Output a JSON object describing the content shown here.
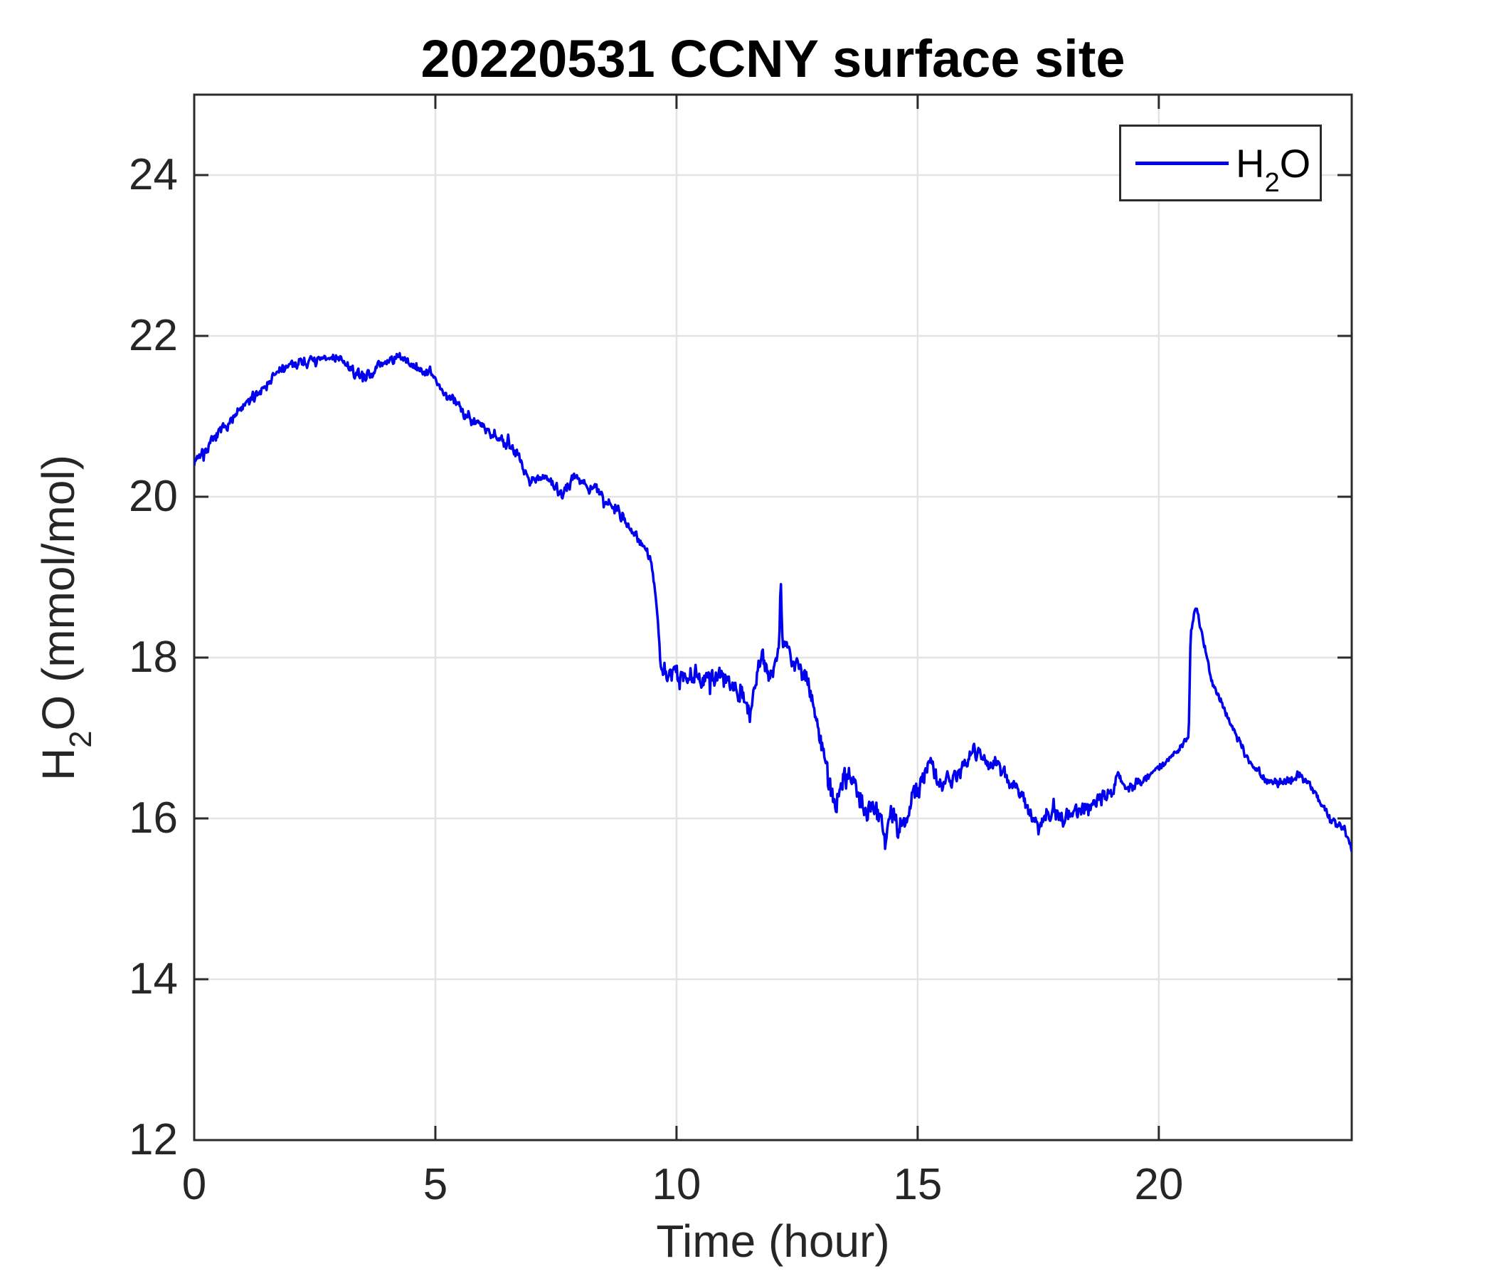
{
  "figure": {
    "title": "20220531 CCNY surface site",
    "xlabel": "Time (hour)",
    "ylabel": {
      "main": "H",
      "sub": "2",
      "tail": "O (mmol/mol)"
    }
  },
  "legend": {
    "entries": [
      {
        "main": "H",
        "sub": "2",
        "tail": "O",
        "color": "#0000EE"
      }
    ]
  },
  "style": {
    "axes_color": "#2b2b2b",
    "tick_label_color": "#262626",
    "grid_color": "#e3e3e3",
    "line_color": "#0000EE",
    "background": "#ffffff"
  },
  "chart_data": {
    "type": "line",
    "title": "20220531 CCNY surface site",
    "xlabel": "Time (hour)",
    "ylabel": "H_2O (mmol/mol)",
    "xlim": [
      0,
      24
    ],
    "ylim": [
      12,
      25
    ],
    "x_ticks": [
      0,
      5,
      10,
      15,
      20
    ],
    "y_ticks": [
      12,
      14,
      16,
      18,
      20,
      22,
      24
    ],
    "grid": true,
    "legend_position": "northeast",
    "sample_step_hours": 0.015,
    "noise_seed": 7,
    "noise_profile": [
      [
        0.0,
        0.07
      ],
      [
        9.5,
        0.08
      ],
      [
        9.7,
        0.14
      ],
      [
        12.9,
        0.14
      ],
      [
        13.8,
        0.17
      ],
      [
        15.1,
        0.13
      ],
      [
        17.6,
        0.12
      ],
      [
        19.6,
        0.08
      ],
      [
        20.3,
        0.04
      ],
      [
        20.9,
        0.05
      ],
      [
        21.8,
        0.06
      ],
      [
        23.2,
        0.06
      ],
      [
        24.0,
        0.07
      ]
    ],
    "series": [
      {
        "name": "H2O",
        "color": "#0000EE",
        "anchors": [
          [
            0.0,
            20.45
          ],
          [
            0.3,
            20.62
          ],
          [
            0.6,
            20.85
          ],
          [
            1.0,
            21.1
          ],
          [
            1.4,
            21.35
          ],
          [
            1.8,
            21.58
          ],
          [
            2.2,
            21.68
          ],
          [
            2.6,
            21.7
          ],
          [
            3.0,
            21.73
          ],
          [
            3.2,
            21.6
          ],
          [
            3.5,
            21.48
          ],
          [
            3.8,
            21.6
          ],
          [
            4.1,
            21.73
          ],
          [
            4.35,
            21.7
          ],
          [
            4.6,
            21.6
          ],
          [
            4.9,
            21.52
          ],
          [
            5.2,
            21.3
          ],
          [
            5.6,
            21.05
          ],
          [
            6.0,
            20.88
          ],
          [
            6.4,
            20.7
          ],
          [
            6.75,
            20.5
          ],
          [
            6.95,
            20.18
          ],
          [
            7.2,
            20.26
          ],
          [
            7.45,
            20.15
          ],
          [
            7.62,
            20.0
          ],
          [
            7.9,
            20.28
          ],
          [
            8.15,
            20.15
          ],
          [
            8.45,
            20.02
          ],
          [
            8.8,
            19.82
          ],
          [
            9.1,
            19.58
          ],
          [
            9.35,
            19.38
          ],
          [
            9.52,
            19.05
          ],
          [
            9.6,
            18.6
          ],
          [
            9.68,
            17.8
          ],
          [
            9.85,
            17.85
          ],
          [
            10.1,
            17.72
          ],
          [
            10.35,
            17.8
          ],
          [
            10.6,
            17.65
          ],
          [
            10.85,
            17.78
          ],
          [
            11.1,
            17.72
          ],
          [
            11.35,
            17.55
          ],
          [
            11.52,
            17.35
          ],
          [
            11.68,
            17.8
          ],
          [
            11.78,
            18.05
          ],
          [
            11.9,
            17.8
          ],
          [
            12.05,
            17.9
          ],
          [
            12.13,
            18.2
          ],
          [
            12.16,
            19.05
          ],
          [
            12.2,
            18.1
          ],
          [
            12.28,
            18.3
          ],
          [
            12.4,
            17.9
          ],
          [
            12.55,
            17.95
          ],
          [
            12.7,
            17.72
          ],
          [
            12.85,
            17.35
          ],
          [
            13.0,
            16.95
          ],
          [
            13.15,
            16.5
          ],
          [
            13.3,
            16.1
          ],
          [
            13.45,
            16.5
          ],
          [
            13.6,
            16.52
          ],
          [
            13.8,
            16.25
          ],
          [
            13.95,
            16.05
          ],
          [
            14.1,
            16.2
          ],
          [
            14.25,
            16.0
          ],
          [
            14.35,
            15.7
          ],
          [
            14.45,
            16.2
          ],
          [
            14.6,
            15.8
          ],
          [
            14.75,
            15.95
          ],
          [
            14.9,
            16.25
          ],
          [
            15.1,
            16.5
          ],
          [
            15.25,
            16.8
          ],
          [
            15.45,
            16.4
          ],
          [
            15.7,
            16.5
          ],
          [
            15.95,
            16.65
          ],
          [
            16.2,
            16.85
          ],
          [
            16.45,
            16.72
          ],
          [
            16.7,
            16.6
          ],
          [
            16.95,
            16.45
          ],
          [
            17.15,
            16.3
          ],
          [
            17.35,
            16.05
          ],
          [
            17.5,
            15.85
          ],
          [
            17.7,
            16.1
          ],
          [
            18.0,
            16.0
          ],
          [
            18.35,
            16.1
          ],
          [
            18.6,
            16.2
          ],
          [
            18.85,
            16.25
          ],
          [
            19.05,
            16.35
          ],
          [
            19.15,
            16.55
          ],
          [
            19.3,
            16.35
          ],
          [
            19.55,
            16.45
          ],
          [
            19.8,
            16.55
          ],
          [
            20.05,
            16.65
          ],
          [
            20.3,
            16.8
          ],
          [
            20.55,
            16.95
          ],
          [
            20.62,
            17.05
          ],
          [
            20.66,
            18.3
          ],
          [
            20.72,
            18.5
          ],
          [
            20.78,
            18.65
          ],
          [
            20.84,
            18.45
          ],
          [
            20.95,
            18.15
          ],
          [
            21.1,
            17.7
          ],
          [
            21.3,
            17.45
          ],
          [
            21.5,
            17.15
          ],
          [
            21.75,
            16.85
          ],
          [
            21.95,
            16.65
          ],
          [
            22.2,
            16.5
          ],
          [
            22.45,
            16.45
          ],
          [
            22.65,
            16.47
          ],
          [
            22.9,
            16.53
          ],
          [
            23.1,
            16.45
          ],
          [
            23.35,
            16.2
          ],
          [
            23.55,
            16.0
          ],
          [
            23.7,
            15.95
          ],
          [
            23.85,
            15.85
          ],
          [
            24.0,
            15.65
          ]
        ]
      }
    ]
  }
}
